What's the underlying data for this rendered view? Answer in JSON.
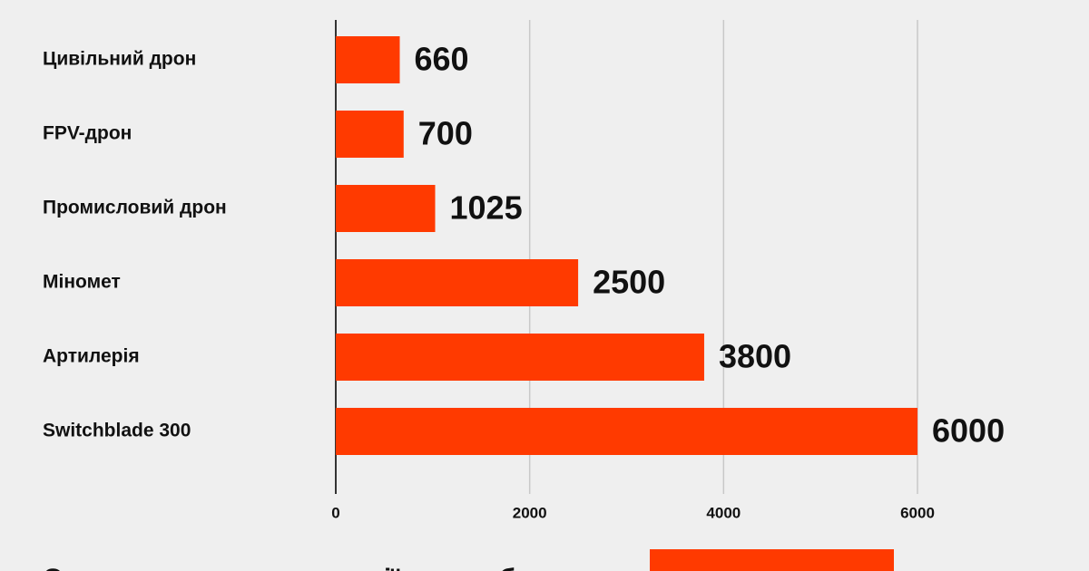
{
  "chart_data": {
    "type": "bar",
    "orientation": "horizontal",
    "categories": [
      "Цивільний дрон",
      "FPV-дрон",
      "Промисловий дрон",
      "Міномет",
      "Артилерія",
      "Switchblade 300"
    ],
    "values": [
      660,
      700,
      1025,
      2500,
      3800,
      6000
    ],
    "color": "#ff3a00",
    "xlim": [
      0,
      6000
    ],
    "xticks": [
      0,
      2000,
      4000,
      6000
    ],
    "grid": true,
    "annotation": "Середня сума компенсації за загиблого"
  }
}
